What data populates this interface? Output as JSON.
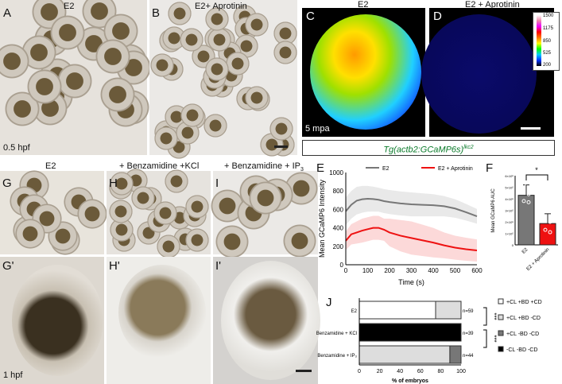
{
  "panels": {
    "A": {
      "letter": "A",
      "title": "E2",
      "note": "0.5 hpf"
    },
    "B": {
      "letter": "B",
      "title": "E2+ Aprotinin"
    },
    "C": {
      "letter": "C",
      "title": "E2",
      "note": "5 mpa"
    },
    "D": {
      "letter": "D",
      "title": "E2 + Aprotinin"
    },
    "colorbar": {
      "ticks": [
        "1500",
        "1175",
        "850",
        "525",
        "200"
      ]
    },
    "transgene": {
      "name": "Tg(actb2:GCaMP6s)",
      "sup": "lkc2"
    },
    "G": {
      "letter": "G",
      "title": "E2"
    },
    "H": {
      "letter": "H",
      "title": "+ Benzamidine +KCl"
    },
    "I": {
      "letter": "I",
      "title": "+ Benzamidine + IP",
      "sub": "3"
    },
    "G2": {
      "letter": "G'",
      "note": "1 hpf"
    },
    "H2": {
      "letter": "H'"
    },
    "I2": {
      "letter": "I'"
    },
    "E": {
      "letter": "E"
    },
    "F": {
      "letter": "F"
    },
    "J": {
      "letter": "J"
    }
  },
  "chart_data": [
    {
      "type": "line",
      "title": "",
      "xlabel": "Time (s)",
      "ylabel": "Mean GCaMP6 Intensity",
      "xlim": [
        0,
        600
      ],
      "ylim": [
        0,
        1000
      ],
      "xticks": [
        "0",
        "100",
        "200",
        "300",
        "400",
        "500",
        "600"
      ],
      "yticks": [
        "0",
        "200",
        "400",
        "600",
        "800",
        "1000"
      ],
      "legend": "top",
      "series": [
        {
          "name": "E2",
          "color": "#777777",
          "x": [
            0,
            25,
            50,
            75,
            100,
            125,
            150,
            175,
            200,
            250,
            300,
            350,
            400,
            450,
            500,
            550,
            600
          ],
          "y": [
            580,
            650,
            695,
            710,
            715,
            712,
            705,
            690,
            680,
            665,
            655,
            650,
            645,
            635,
            610,
            570,
            525
          ],
          "err": [
            150,
            150,
            150,
            145,
            140,
            135,
            130,
            130,
            130,
            130,
            130,
            125,
            120,
            110,
            100,
            90,
            80
          ]
        },
        {
          "name": "E2 + Aprotinin",
          "color": "#ee1111",
          "x": [
            0,
            25,
            50,
            75,
            100,
            125,
            150,
            175,
            200,
            250,
            300,
            350,
            400,
            450,
            500,
            550,
            600
          ],
          "y": [
            260,
            330,
            350,
            370,
            385,
            400,
            400,
            380,
            350,
            315,
            290,
            265,
            240,
            210,
            185,
            168,
            155
          ],
          "err": [
            100,
            110,
            120,
            130,
            130,
            130,
            130,
            120,
            150,
            170,
            180,
            170,
            160,
            140,
            130,
            125,
            120
          ]
        }
      ]
    },
    {
      "type": "bar",
      "title": "",
      "ylabel": "Mean GCaMP6 AUC",
      "ylim": [
        0,
        600000
      ],
      "yticks": [
        "0",
        "1×10⁵",
        "2×10⁵",
        "3×10⁵",
        "4×10⁵",
        "5×10⁵",
        "6×10⁵"
      ],
      "categories": [
        "E2",
        "E2 + Aprotinin"
      ],
      "values": [
        430000,
        185000
      ],
      "err": [
        90000,
        85000
      ],
      "points": [
        [
          520000,
          440000,
          380000,
          370000
        ],
        [
          300000,
          200000,
          130000,
          110000
        ]
      ],
      "colors": [
        "#777777",
        "#ee1111"
      ],
      "significance": "*"
    },
    {
      "type": "bar",
      "orientation": "horizontal",
      "stacked": true,
      "xlabel": "% of embryos",
      "xlim": [
        0,
        100
      ],
      "xticks": [
        "0",
        "20",
        "40",
        "60",
        "80",
        "100"
      ],
      "categories": [
        "E2",
        "Benzamidine + KCl",
        "Benzamidine + IP₃"
      ],
      "n_labels": [
        "n=59",
        "n=39",
        "n=44"
      ],
      "series": [
        {
          "name": "+CL +BD +CD",
          "color": "#ffffff",
          "values": [
            75,
            0,
            0
          ]
        },
        {
          "name": "+CL +BD -CD",
          "color": "#dddddd",
          "values": [
            25,
            0,
            89
          ]
        },
        {
          "name": "+CL -BD -CD",
          "color": "#777777",
          "values": [
            0,
            0,
            11
          ]
        },
        {
          "name": "-CL -BD -CD",
          "color": "#000000",
          "values": [
            0,
            100,
            0
          ]
        }
      ],
      "significance": [
        "***",
        "***"
      ]
    }
  ]
}
